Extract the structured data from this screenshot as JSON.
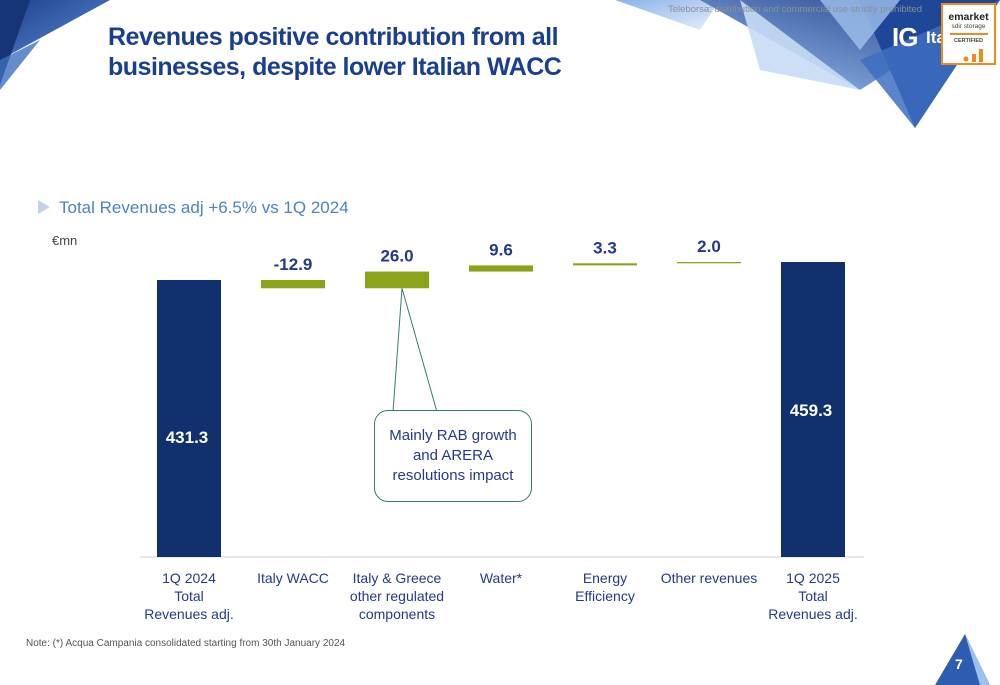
{
  "slide": {
    "title_line1": "Revenues positive contribution from all",
    "title_line2": "businesses, despite lower Italian WACC",
    "confidential": "Teleborsa: distribution and commercial use strictly prohibited",
    "logo_text": "IG",
    "logo_suffix": "Ita",
    "badge": {
      "line1": "emarket",
      "line2": "sdir storage",
      "line3": "CERTIFIED"
    },
    "subtitle": "Total Revenues adj +6.5% vs 1Q 2024",
    "unit": "€mn",
    "callout": "Mainly RAB growth and ARERA resolutions impact",
    "footnote": "Note: (*) Acqua Campania consolidated starting from 30th January 2024",
    "page_number": "7"
  },
  "colors": {
    "total": "#13306e",
    "delta": "#8ba319",
    "title": "#1b3f8f",
    "subtitle": "#4e82c4",
    "deco": "#2f5fb3"
  },
  "chart_data": {
    "type": "bar",
    "subtype": "waterfall",
    "title": "Total Revenues adj +6.5% vs 1Q 2024",
    "ylabel": "€mn",
    "categories": [
      [
        "1Q 2024",
        "Total",
        "Revenues adj."
      ],
      [
        "Italy WACC"
      ],
      [
        "Italy & Greece",
        "other regulated",
        "components"
      ],
      [
        "Water*"
      ],
      [
        "Energy",
        "Efficiency"
      ],
      [
        "Other revenues"
      ],
      [
        "1Q 2025",
        "Total",
        "Revenues adj."
      ]
    ],
    "values": [
      431.3,
      -12.9,
      26.0,
      9.6,
      3.3,
      2.0,
      459.3
    ],
    "labels": [
      "431.3",
      "-12.9",
      "26.0",
      "9.6",
      "3.3",
      "2.0",
      "459.3"
    ],
    "kinds": [
      "total",
      "delta",
      "delta",
      "delta",
      "delta",
      "delta",
      "total"
    ],
    "ylim": [
      0,
      470
    ],
    "grid": false
  }
}
